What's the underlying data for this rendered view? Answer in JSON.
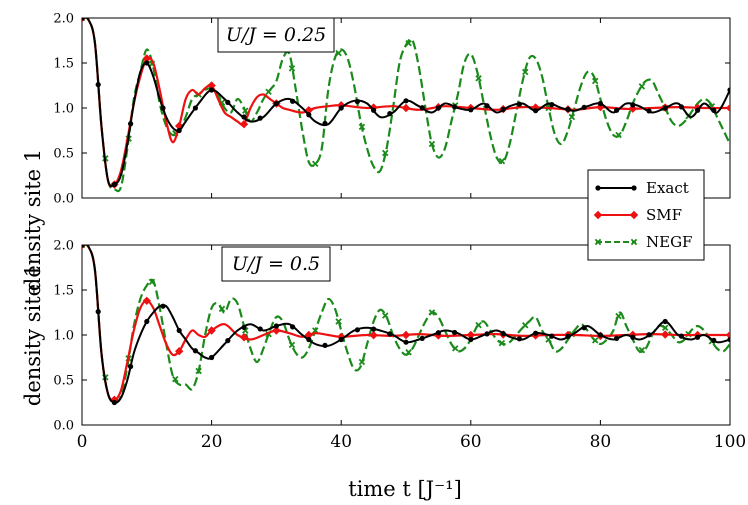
{
  "chart_data": {
    "type": "line",
    "xlabel": "time t [J⁻¹]",
    "ylabel": "density site 1",
    "xlim": [
      0,
      100
    ],
    "ylim": [
      0,
      2
    ],
    "xticks": [
      "0",
      "20",
      "40",
      "60",
      "80",
      "100"
    ],
    "yticks": [
      "0.0",
      "0.5",
      "1.0",
      "1.5",
      "2.0"
    ],
    "legend": {
      "placement": "right, between panels",
      "entries": [
        {
          "name": "Exact",
          "color": "#000000",
          "marker": "circle",
          "dash": "solid"
        },
        {
          "name": "SMF",
          "color": "#ee1111",
          "marker": "diamond",
          "dash": "solid"
        },
        {
          "name": "NEGF",
          "color": "#1a8a1a",
          "marker": "x",
          "dash": "dashed"
        }
      ]
    },
    "panels": [
      {
        "annotation": "U/J = 0.25",
        "series": [
          {
            "name": "Exact",
            "x": [
              0,
              1,
              2,
              3,
              4,
              5,
              6,
              7,
              8,
              9,
              10,
              11,
              12,
              13,
              14,
              15,
              16,
              18,
              20,
              22,
              24,
              26,
              28,
              30,
              32,
              34,
              36,
              38,
              40,
              42,
              44,
              46,
              48,
              50,
              52,
              54,
              56,
              58,
              60,
              62,
              64,
              66,
              68,
              70,
              72,
              74,
              76,
              78,
              80,
              82,
              84,
              86,
              88,
              90,
              92,
              94,
              96,
              98,
              100
            ],
            "y": [
              2.0,
              1.98,
              1.72,
              0.8,
              0.2,
              0.15,
              0.25,
              0.6,
              1.05,
              1.4,
              1.5,
              1.35,
              1.1,
              0.9,
              0.78,
              0.75,
              0.85,
              1.05,
              1.2,
              1.1,
              0.95,
              0.85,
              0.9,
              1.05,
              1.1,
              1.0,
              0.85,
              0.82,
              1.0,
              1.08,
              1.05,
              0.9,
              0.95,
              1.08,
              1.02,
              0.95,
              1.05,
              1.0,
              0.98,
              1.05,
              0.95,
              1.02,
              1.05,
              0.97,
              1.05,
              1.0,
              0.97,
              1.02,
              1.05,
              0.95,
              1.05,
              1.02,
              0.95,
              1.0,
              1.05,
              0.9,
              1.05,
              0.95,
              1.2
            ]
          },
          {
            "name": "SMF",
            "x": [
              0,
              1,
              2,
              3,
              4,
              5,
              6,
              7,
              8,
              9,
              10,
              11,
              12,
              13,
              14,
              15,
              16,
              17,
              18,
              19,
              20,
              21,
              22,
              23,
              24,
              25,
              26,
              27,
              28,
              29,
              30,
              31,
              32,
              34,
              36,
              38,
              40,
              44,
              48,
              52,
              56,
              60,
              64,
              68,
              72,
              76,
              80,
              84,
              88,
              92,
              96,
              100
            ],
            "y": [
              2.0,
              1.98,
              1.72,
              0.8,
              0.2,
              0.15,
              0.3,
              0.65,
              1.05,
              1.35,
              1.55,
              1.5,
              1.2,
              0.85,
              0.62,
              0.8,
              1.1,
              1.2,
              1.15,
              1.22,
              1.25,
              1.1,
              0.95,
              0.9,
              0.85,
              0.82,
              1.0,
              1.12,
              1.15,
              1.1,
              1.05,
              1.0,
              0.98,
              0.95,
              1.0,
              1.02,
              1.03,
              1.0,
              1.02,
              0.98,
              1.02,
              1.0,
              0.98,
              1.01,
              1.0,
              0.98,
              1.01,
              0.99,
              1.0,
              1.01,
              1.0,
              1.0
            ]
          },
          {
            "name": "NEGF",
            "x": [
              0,
              1,
              2,
              3,
              4,
              5,
              6,
              7,
              8,
              9,
              10,
              11,
              12,
              13,
              14,
              15,
              16,
              17,
              18,
              19,
              20,
              21,
              22,
              23,
              24,
              25,
              26,
              27,
              28,
              29,
              30,
              31,
              32,
              33,
              34,
              35,
              36,
              37,
              38,
              39,
              40,
              41,
              42,
              43,
              44,
              45,
              46,
              47,
              48,
              49,
              50,
              51,
              52,
              53,
              54,
              55,
              56,
              57,
              58,
              59,
              60,
              61,
              62,
              63,
              64,
              65,
              66,
              67,
              68,
              69,
              70,
              71,
              72,
              73,
              74,
              75,
              76,
              77,
              78,
              79,
              80,
              81,
              82,
              83,
              84,
              85,
              86,
              87,
              88,
              89,
              90,
              91,
              92,
              93,
              94,
              95,
              96,
              97,
              98,
              99,
              100
            ],
            "y": [
              2.0,
              1.98,
              1.72,
              0.8,
              0.2,
              0.1,
              0.12,
              0.55,
              1.1,
              1.4,
              1.65,
              1.45,
              1.05,
              0.8,
              0.7,
              0.75,
              0.9,
              1.1,
              1.15,
              1.2,
              1.22,
              1.15,
              1.0,
              0.95,
              1.1,
              1.0,
              0.85,
              0.95,
              1.1,
              1.2,
              1.3,
              1.55,
              1.6,
              1.2,
              0.75,
              0.4,
              0.38,
              0.55,
              1.2,
              1.55,
              1.65,
              1.55,
              1.25,
              0.85,
              0.55,
              0.35,
              0.3,
              0.55,
              1.0,
              1.5,
              1.7,
              1.75,
              1.45,
              1.0,
              0.6,
              0.45,
              0.55,
              0.85,
              1.15,
              1.5,
              1.6,
              1.4,
              1.05,
              0.7,
              0.45,
              0.4,
              0.6,
              0.95,
              1.3,
              1.55,
              1.55,
              1.35,
              1.0,
              0.7,
              0.6,
              0.75,
              1.0,
              1.25,
              1.4,
              1.35,
              1.1,
              0.85,
              0.7,
              0.7,
              0.85,
              1.05,
              1.2,
              1.3,
              1.3,
              1.15,
              1.0,
              0.85,
              0.8,
              0.85,
              0.95,
              1.05,
              1.1,
              1.05,
              0.9,
              0.75,
              0.6
            ]
          }
        ]
      },
      {
        "annotation": "U/J = 0.5",
        "series": [
          {
            "name": "Exact",
            "x": [
              0,
              1,
              2,
              3,
              4,
              5,
              6,
              7,
              8,
              9,
              10,
              11,
              12,
              13,
              14,
              15,
              16,
              17,
              18,
              19,
              20,
              22,
              24,
              26,
              28,
              30,
              32,
              34,
              36,
              38,
              40,
              42,
              44,
              46,
              48,
              50,
              52,
              54,
              56,
              58,
              60,
              62,
              64,
              66,
              68,
              70,
              72,
              74,
              76,
              78,
              80,
              82,
              84,
              86,
              88,
              90,
              92,
              94,
              96,
              98,
              100
            ],
            "y": [
              2.0,
              1.98,
              1.72,
              0.8,
              0.35,
              0.25,
              0.3,
              0.5,
              0.8,
              1.0,
              1.15,
              1.25,
              1.32,
              1.32,
              1.2,
              1.05,
              0.95,
              0.85,
              0.8,
              0.75,
              0.75,
              0.9,
              1.05,
              1.12,
              1.05,
              1.1,
              1.12,
              1.0,
              0.9,
              0.88,
              0.95,
              1.05,
              1.08,
              1.05,
              1.0,
              0.92,
              0.95,
              1.0,
              1.05,
              1.02,
              0.95,
              1.0,
              1.05,
              0.98,
              0.95,
              1.02,
              1.0,
              0.95,
              1.02,
              1.1,
              1.0,
              0.95,
              1.0,
              0.95,
              1.02,
              1.15,
              1.0,
              0.95,
              1.0,
              0.92,
              0.95
            ]
          },
          {
            "name": "SMF",
            "x": [
              0,
              1,
              2,
              3,
              4,
              5,
              6,
              7,
              8,
              9,
              10,
              11,
              12,
              13,
              14,
              15,
              16,
              17,
              18,
              19,
              20,
              22,
              24,
              26,
              28,
              30,
              32,
              34,
              36,
              38,
              40,
              44,
              48,
              52,
              56,
              60,
              64,
              68,
              72,
              76,
              80,
              84,
              88,
              92,
              96,
              100
            ],
            "y": [
              2.0,
              1.98,
              1.72,
              0.8,
              0.35,
              0.28,
              0.38,
              0.7,
              1.05,
              1.3,
              1.38,
              1.3,
              1.1,
              0.9,
              0.78,
              0.82,
              0.95,
              1.05,
              1.0,
              0.98,
              1.05,
              1.12,
              1.0,
              0.95,
              1.0,
              1.05,
              1.02,
              0.98,
              1.02,
              1.0,
              0.98,
              1.0,
              0.99,
              1.01,
              0.99,
              1.0,
              1.01,
              0.99,
              1.0,
              1.0,
              0.99,
              1.0,
              1.01,
              1.0,
              1.0,
              1.0
            ]
          },
          {
            "name": "NEGF",
            "x": [
              0,
              1,
              2,
              3,
              4,
              5,
              6,
              7,
              8,
              9,
              10,
              11,
              12,
              13,
              14,
              15,
              16,
              17,
              18,
              19,
              20,
              21,
              22,
              23,
              24,
              25,
              26,
              27,
              28,
              29,
              30,
              31,
              32,
              33,
              34,
              35,
              36,
              37,
              38,
              39,
              40,
              41,
              42,
              43,
              44,
              45,
              46,
              47,
              48,
              49,
              50,
              51,
              52,
              53,
              54,
              55,
              56,
              57,
              58,
              59,
              60,
              61,
              62,
              63,
              64,
              65,
              66,
              67,
              68,
              69,
              70,
              71,
              72,
              73,
              74,
              75,
              76,
              77,
              78,
              79,
              80,
              81,
              82,
              83,
              84,
              85,
              86,
              87,
              88,
              89,
              90,
              91,
              92,
              93,
              94,
              95,
              96,
              97,
              98,
              99,
              100
            ],
            "y": [
              2.0,
              1.98,
              1.72,
              0.8,
              0.35,
              0.25,
              0.32,
              0.65,
              1.1,
              1.4,
              1.55,
              1.6,
              1.3,
              0.9,
              0.55,
              0.45,
              0.45,
              0.4,
              0.6,
              1.0,
              1.3,
              1.35,
              1.25,
              1.4,
              1.35,
              1.1,
              0.85,
              0.7,
              0.85,
              1.05,
              1.2,
              1.15,
              0.95,
              0.8,
              0.75,
              0.85,
              1.05,
              1.25,
              1.4,
              1.3,
              1.05,
              0.8,
              0.62,
              0.65,
              0.9,
              1.15,
              1.28,
              1.2,
              1.0,
              0.85,
              0.78,
              0.85,
              1.0,
              1.15,
              1.25,
              1.2,
              1.05,
              0.9,
              0.82,
              0.85,
              0.95,
              1.1,
              1.15,
              1.05,
              0.95,
              0.9,
              0.92,
              1.0,
              1.08,
              1.15,
              1.2,
              1.05,
              0.95,
              0.82,
              0.85,
              0.95,
              1.05,
              1.12,
              1.05,
              0.95,
              0.9,
              0.95,
              1.05,
              1.25,
              1.1,
              0.95,
              0.82,
              0.85,
              1.0,
              1.1,
              1.08,
              1.0,
              0.92,
              0.95,
              1.05,
              1.1,
              1.05,
              0.95,
              0.85,
              0.82,
              0.9
            ]
          }
        ]
      }
    ]
  }
}
